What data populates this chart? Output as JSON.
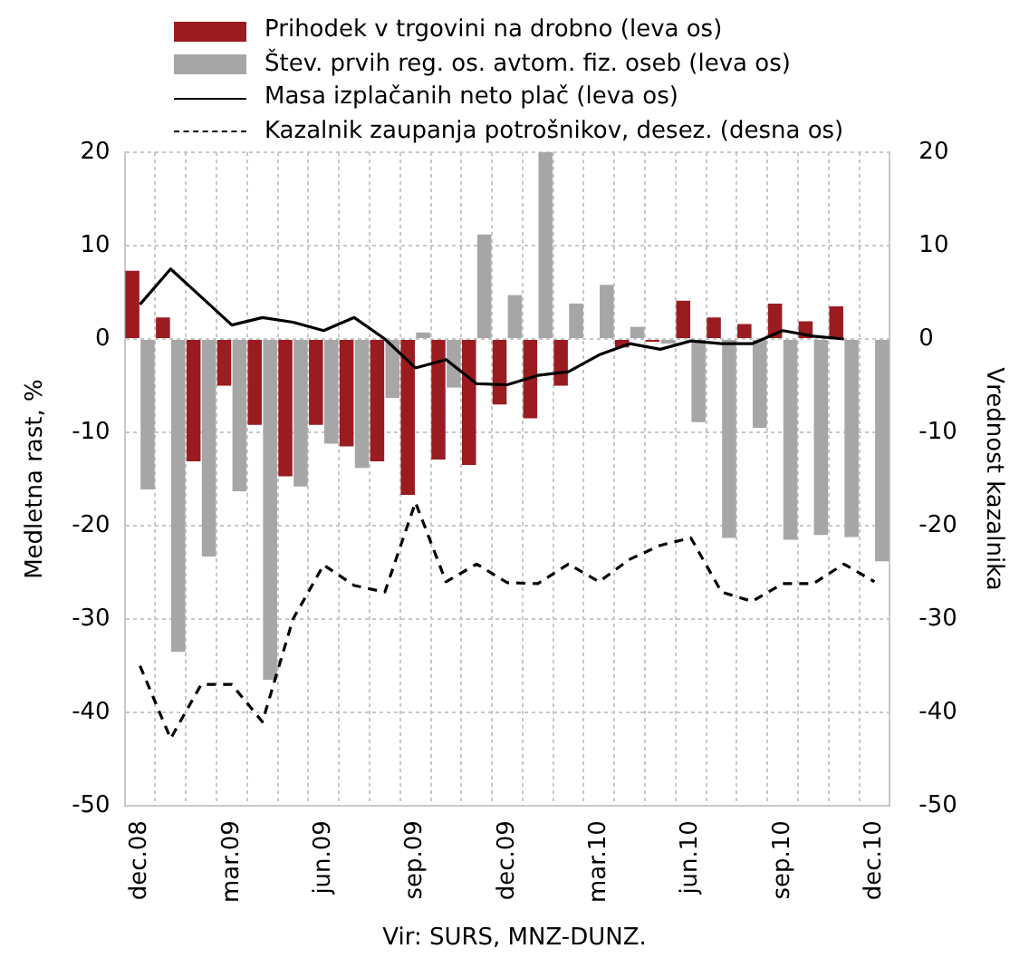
{
  "chart_data": {
    "type": "bar",
    "xlabel": null,
    "ylabel": "Medletna rast, %",
    "y2label": "Vrednost kazalnika",
    "categories": [
      "dec.08",
      null,
      null,
      "mar.09",
      null,
      null,
      "jun.09",
      null,
      null,
      "sep.09",
      null,
      null,
      "dec.09",
      null,
      null,
      "mar.10",
      null,
      null,
      "jun.10",
      null,
      null,
      "sep.10",
      null,
      null,
      "dec.10"
    ],
    "series": [
      {
        "name": "Prihodek v trgovini na drobno (leva os)",
        "color": "#9b1c20",
        "values": [
          7.3,
          2.3,
          -13.1,
          -5,
          -9.2,
          -14.7,
          -9.2,
          -11.5,
          -13.1,
          -16.7,
          -12.9,
          -13.5,
          -7,
          -8.5,
          -5,
          null,
          -0.9,
          -0.3,
          4.1,
          2.3,
          1.6,
          3.8,
          1.9,
          3.5,
          null
        ]
      },
      {
        "name": "Štev. prvih reg. os. avtom. fiz. oseb (leva os)",
        "color": "#a6a6a6",
        "values": [
          -16.1,
          -33.5,
          -23.3,
          -16.3,
          -36.5,
          -15.8,
          -11.2,
          -13.8,
          -6.3,
          0.7,
          -5.2,
          11.2,
          4.7,
          20,
          3.8,
          5.8,
          1.3,
          -0.5,
          -8.9,
          -21.3,
          -9.5,
          -21.5,
          -21,
          -21.2,
          -23.8
        ]
      },
      {
        "name": "Masa izplačanih neto plač (leva os)",
        "type": "line",
        "color": "#000000",
        "line_style": "solid",
        "values": [
          3.7,
          7.5,
          4.5,
          1.5,
          2.3,
          1.8,
          0.9,
          2.3,
          0,
          -3.1,
          -2.2,
          -4.8,
          -4.9,
          -3.9,
          -3.5,
          -1.7,
          -0.5,
          -1.1,
          -0.2,
          -0.5,
          -0.5,
          0.9,
          0.3,
          0,
          null
        ]
      },
      {
        "name": "Kazalnik zaupanja potrošnikov, desez. (desna os)",
        "type": "line",
        "axis": "y2",
        "color": "#000000",
        "line_style": "dashed",
        "values": [
          -35,
          -42.8,
          -37,
          -37,
          -41,
          -30,
          -24.2,
          -26.4,
          -27.1,
          -17.5,
          -26,
          -24.1,
          -26.1,
          -26.2,
          -24.1,
          -26,
          -23.6,
          -22.1,
          -21.3,
          -27.1,
          -28.1,
          -26.2,
          -26.2,
          -24.1,
          -26
        ]
      }
    ],
    "ylim": [
      -50,
      20
    ],
    "yticks": [
      -50,
      -40,
      -30,
      -20,
      -10,
      0,
      10,
      20
    ],
    "y2lim": [
      -50,
      20
    ],
    "y2ticks": [
      -50,
      -40,
      -30,
      -20,
      -10,
      0,
      10,
      20
    ],
    "grid": true,
    "legend": "top",
    "marker": "none",
    "annotations": [
      "Vir: SURS, MNZ-DUNZ."
    ]
  }
}
